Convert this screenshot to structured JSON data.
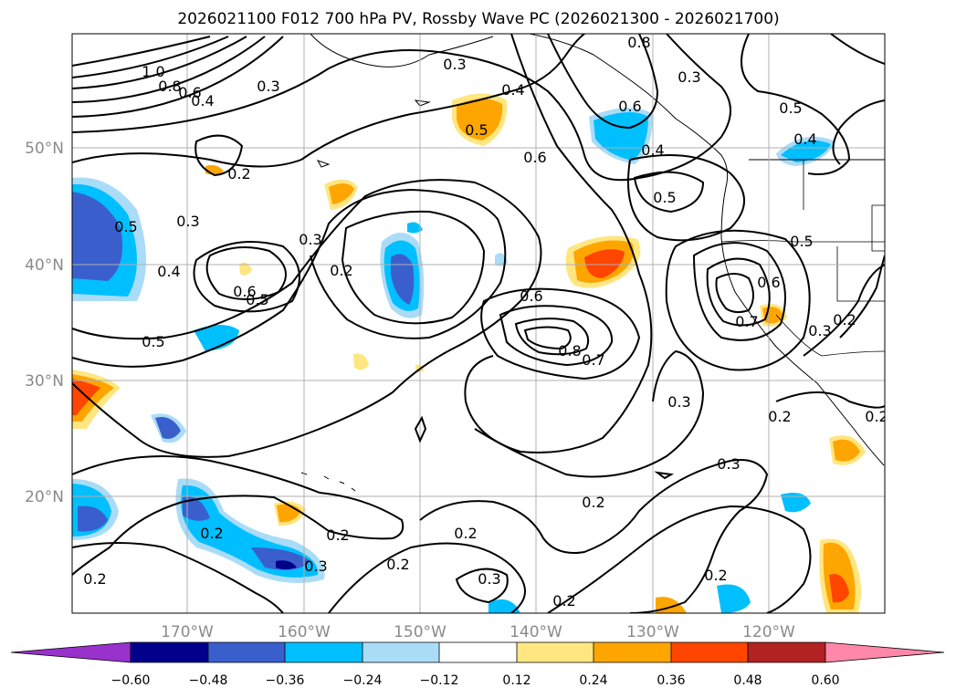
{
  "title": "2026021100 F012 700 hPa PV, Rossby Wave PC (2026021300 - 2026021700)",
  "map": {
    "lon_ticks": [
      "170°W",
      "160°W",
      "150°W",
      "140°W",
      "130°W",
      "120°W"
    ],
    "lat_ticks": [
      "50°N",
      "40°N",
      "30°N",
      "20°N"
    ],
    "grid_color": "#b0b0b0",
    "contour_labels": [
      "1.0",
      "0.8",
      "0.6",
      "0.4",
      "0.3",
      "0.3",
      "0.3",
      "0.2",
      "0.3",
      "0.5",
      "0.4",
      "0.6",
      "0.5",
      "0.4",
      "0.6",
      "0.5",
      "0.2",
      "0.5",
      "0.4",
      "0.3",
      "0.5",
      "0.4",
      "0.2",
      "0.6",
      "0.8",
      "0.7",
      "0.3",
      "0.7",
      "0.6",
      "0.5",
      "0.3",
      "0.2",
      "0.2",
      "0.3",
      "0.2",
      "0.2",
      "0.2",
      "0.2",
      "0.3",
      "0.2",
      "0.2",
      "0.3",
      "0.2",
      "0.5",
      "0.8",
      "0.2",
      "0.6"
    ]
  },
  "colorbar": {
    "ticks": [
      "−0.60",
      "−0.48",
      "−0.36",
      "−0.24",
      "−0.12",
      "0.12",
      "0.24",
      "0.36",
      "0.48",
      "0.60"
    ],
    "colors": [
      "#9932cc",
      "#00008b",
      "#3a5fcd",
      "#00bfff",
      "#aadcf7",
      "#ffffff",
      "#ffe680",
      "#ffa500",
      "#ff4500",
      "#b22222",
      "#ff88aa"
    ]
  }
}
